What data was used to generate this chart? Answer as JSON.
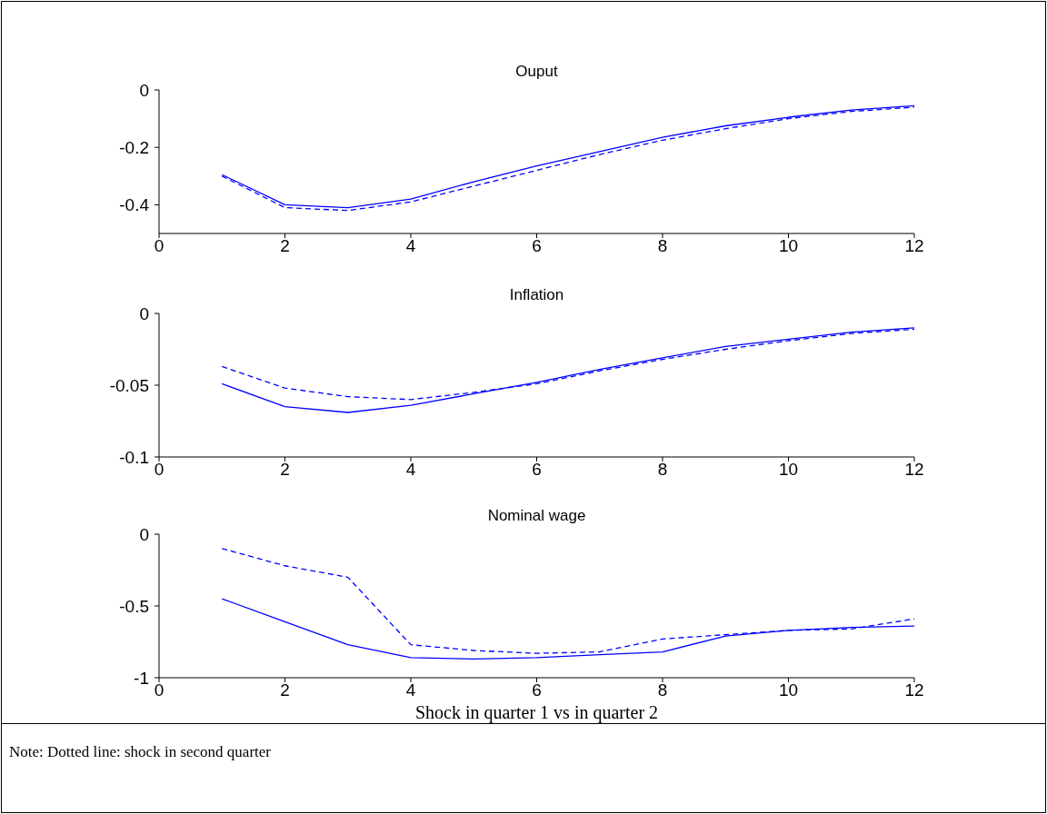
{
  "chart_data": [
    {
      "type": "line",
      "title": "Ouput",
      "x": [
        1,
        2,
        3,
        4,
        5,
        6,
        7,
        8,
        9,
        10,
        11,
        12
      ],
      "xlim": [
        0,
        12
      ],
      "xticks": [
        0,
        2,
        4,
        6,
        8,
        10,
        12
      ],
      "ylim": [
        -0.5,
        0
      ],
      "yticks": [
        -0.4,
        -0.2,
        0
      ],
      "marker": "none",
      "series": [
        {
          "color": "#0000ff",
          "line_style": "solid",
          "values": [
            -0.295,
            -0.4,
            -0.41,
            -0.38,
            -0.32,
            -0.265,
            -0.215,
            -0.165,
            -0.125,
            -0.095,
            -0.07,
            -0.055
          ]
        },
        {
          "color": "#0000ff",
          "line_style": "dashed",
          "values": [
            -0.3,
            -0.41,
            -0.42,
            -0.39,
            -0.335,
            -0.28,
            -0.225,
            -0.175,
            -0.135,
            -0.1,
            -0.075,
            -0.06
          ]
        }
      ]
    },
    {
      "type": "line",
      "title": "Inflation",
      "x": [
        1,
        2,
        3,
        4,
        5,
        6,
        7,
        8,
        9,
        10,
        11,
        12
      ],
      "xlim": [
        0,
        12
      ],
      "xticks": [
        0,
        2,
        4,
        6,
        8,
        10,
        12
      ],
      "ylim": [
        -0.1,
        0
      ],
      "yticks": [
        -0.1,
        -0.05,
        0
      ],
      "marker": "none",
      "series": [
        {
          "color": "#0000ff",
          "line_style": "solid",
          "values": [
            -0.049,
            -0.065,
            -0.069,
            -0.064,
            -0.056,
            -0.048,
            -0.039,
            -0.031,
            -0.023,
            -0.018,
            -0.013,
            -0.01
          ]
        },
        {
          "color": "#0000ff",
          "line_style": "dashed",
          "values": [
            -0.037,
            -0.052,
            -0.058,
            -0.06,
            -0.055,
            -0.049,
            -0.04,
            -0.032,
            -0.025,
            -0.019,
            -0.014,
            -0.011
          ]
        }
      ]
    },
    {
      "type": "line",
      "title": "Nominal wage",
      "xlabel": "Shock in quarter 1 vs in quarter 2",
      "annotations": [
        "Note: Dotted line: shock in second quarter"
      ],
      "x": [
        1,
        2,
        3,
        4,
        5,
        6,
        7,
        8,
        9,
        10,
        11,
        12
      ],
      "xlim": [
        0,
        12
      ],
      "xticks": [
        0,
        2,
        4,
        6,
        8,
        10,
        12
      ],
      "ylim": [
        -1,
        0
      ],
      "yticks": [
        -1,
        -0.5,
        0
      ],
      "marker": "none",
      "series": [
        {
          "color": "#0000ff",
          "line_style": "solid",
          "values": [
            -0.45,
            -0.61,
            -0.77,
            -0.86,
            -0.87,
            -0.86,
            -0.84,
            -0.82,
            -0.71,
            -0.67,
            -0.65,
            -0.64
          ]
        },
        {
          "color": "#0000ff",
          "line_style": "dashed",
          "values": [
            -0.1,
            -0.22,
            -0.3,
            -0.77,
            -0.81,
            -0.83,
            -0.82,
            -0.73,
            -0.7,
            -0.67,
            -0.66,
            -0.59
          ]
        }
      ]
    }
  ]
}
